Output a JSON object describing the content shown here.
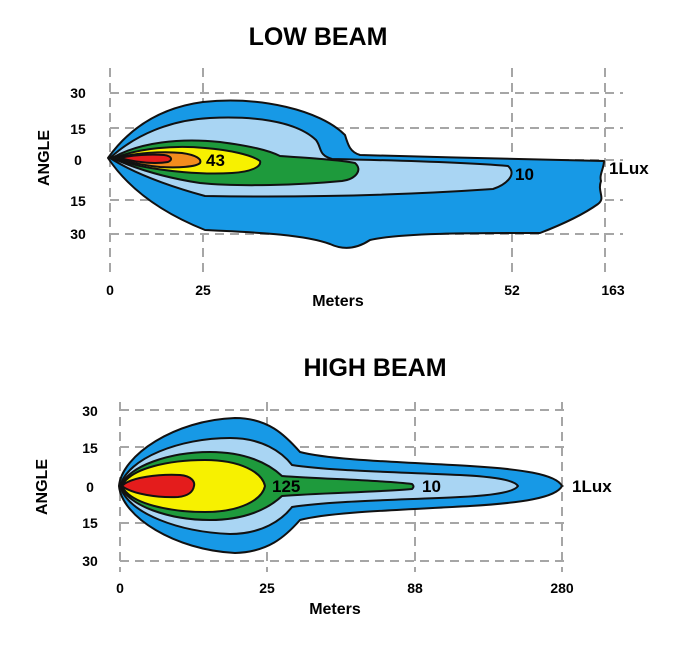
{
  "colors": {
    "z1": "#1799e6",
    "z2": "#a9d5f3",
    "z3": "#1e9a3c",
    "z4": "#f7f100",
    "z5": "#f28c1e",
    "z6": "#e41c1c",
    "grid": "#a6a6a6"
  },
  "chart_data": [
    {
      "type": "area",
      "title": "LOW BEAM",
      "xlabel": "Meters",
      "ylabel": "ANGLE",
      "x_tick_labels": [
        "0",
        "25",
        "52",
        "163"
      ],
      "y_tick_labels": [
        "30",
        "15",
        "0",
        "15",
        "30"
      ],
      "grid": true,
      "series": [
        {
          "name": "1Lux",
          "reach_m": 163
        },
        {
          "name": "10",
          "reach_m": 52
        },
        {
          "name": "43",
          "reach_m": 25
        }
      ]
    },
    {
      "type": "area",
      "title": "HIGH BEAM",
      "xlabel": "Meters",
      "ylabel": "ANGLE",
      "x_tick_labels": [
        "0",
        "25",
        "88",
        "280"
      ],
      "y_tick_labels": [
        "30",
        "15",
        "0",
        "15",
        "30"
      ],
      "grid": true,
      "series": [
        {
          "name": "1Lux",
          "reach_m": 280
        },
        {
          "name": "10",
          "reach_m": 88
        },
        {
          "name": "125",
          "reach_m": 25
        }
      ]
    }
  ]
}
